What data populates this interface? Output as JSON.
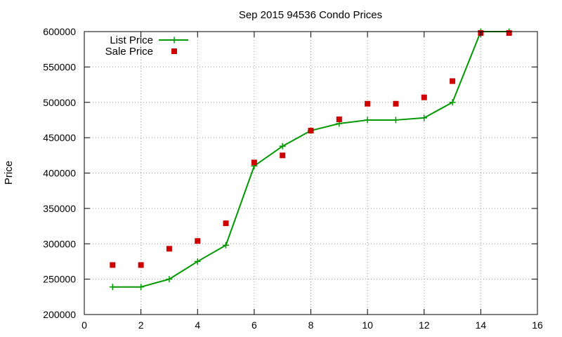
{
  "chart_data": {
    "type": "line",
    "title": "Sep 2015 94536 Condo Prices",
    "xlabel": "",
    "ylabel": "Price",
    "xlim": [
      0,
      16
    ],
    "ylim": [
      200000,
      600000
    ],
    "xticks": [
      0,
      2,
      4,
      6,
      8,
      10,
      12,
      14,
      16
    ],
    "yticks": [
      200000,
      250000,
      300000,
      350000,
      400000,
      450000,
      500000,
      550000,
      600000
    ],
    "grid": true,
    "legend_position": "top-left",
    "series": [
      {
        "name": "List Price",
        "style": "line+cross",
        "color": "#009900",
        "x": [
          1,
          2,
          3,
          4,
          5,
          6,
          7,
          8,
          9,
          10,
          11,
          12,
          13,
          14,
          15
        ],
        "y": [
          239000,
          239000,
          250000,
          275000,
          298000,
          410000,
          438000,
          460000,
          470000,
          475000,
          475000,
          478000,
          500000,
          600000,
          600000
        ]
      },
      {
        "name": "Sale Price",
        "style": "square",
        "color": "#cc0000",
        "x": [
          1,
          2,
          3,
          4,
          5,
          6,
          7,
          8,
          9,
          10,
          11,
          12,
          13,
          14,
          15
        ],
        "y": [
          270000,
          270000,
          293000,
          304000,
          329000,
          415000,
          425000,
          460000,
          476000,
          498000,
          498000,
          507000,
          530000,
          598000,
          598000
        ]
      }
    ]
  }
}
